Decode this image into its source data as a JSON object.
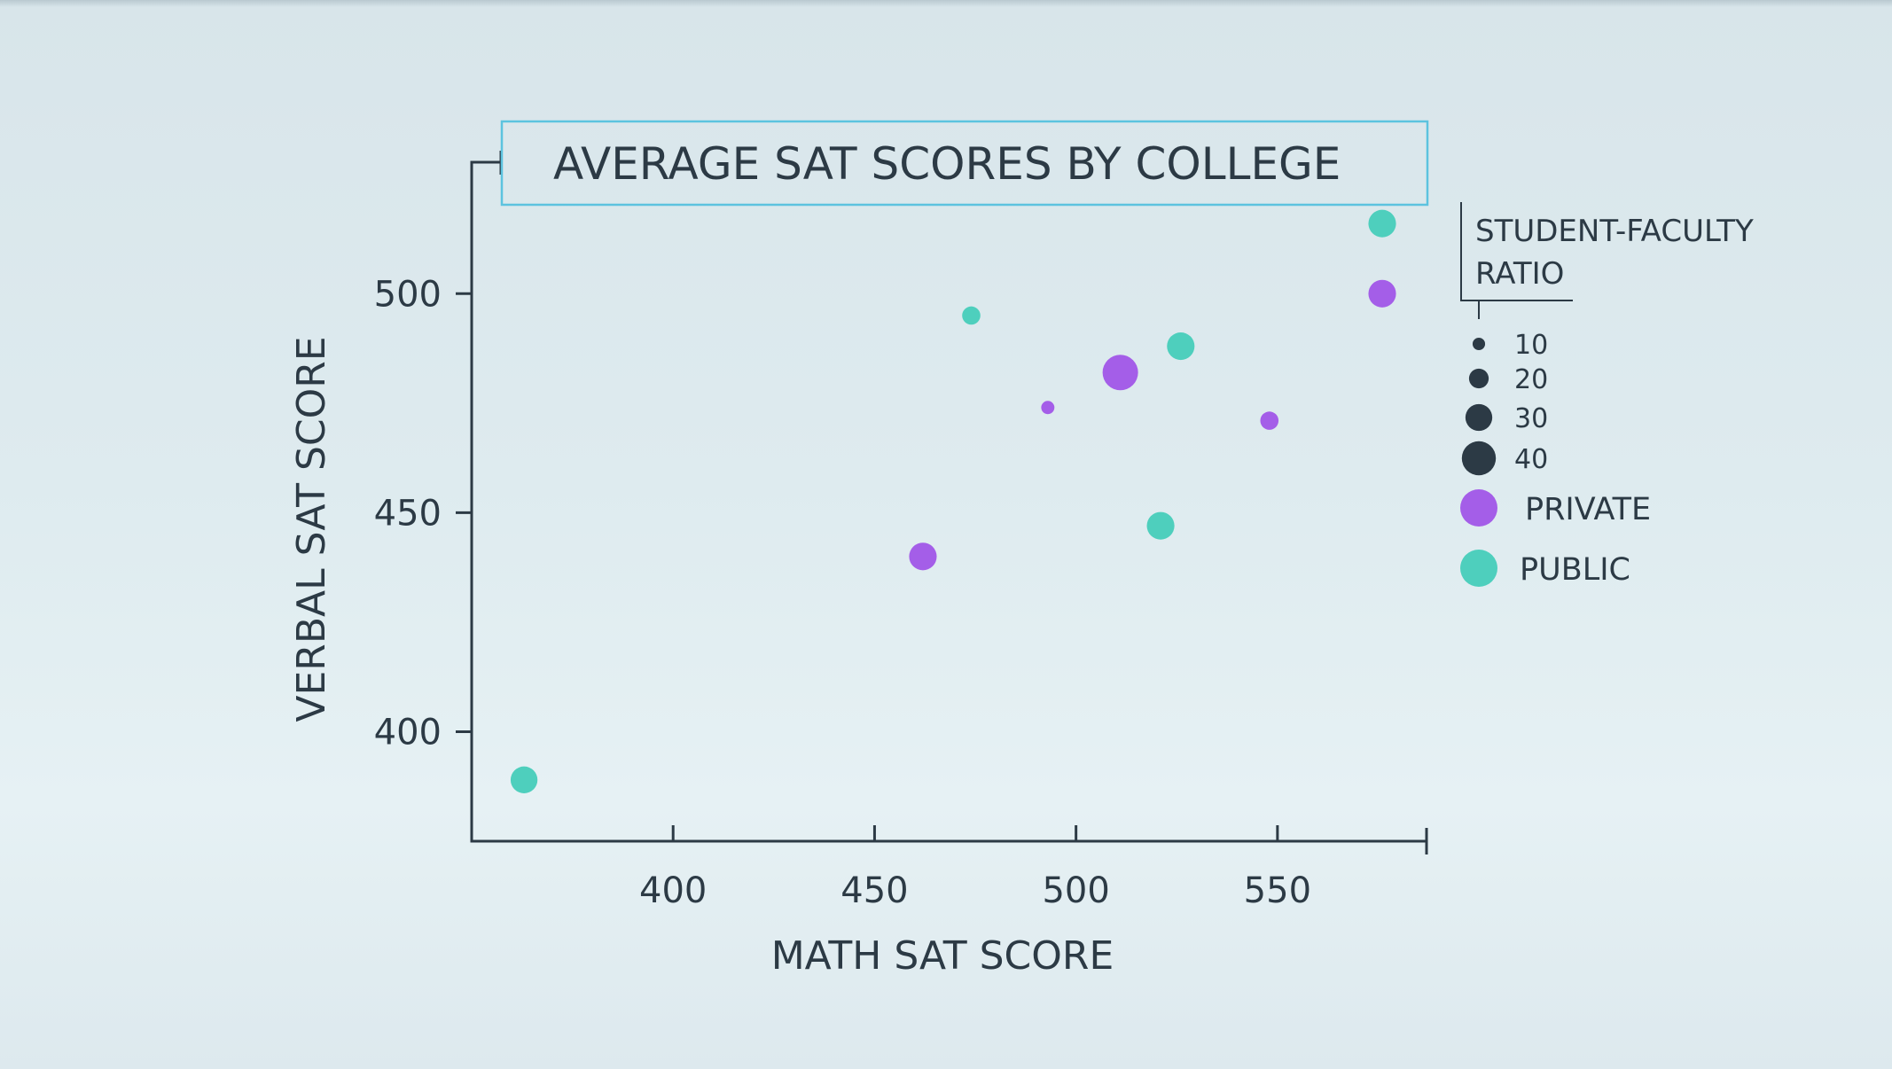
{
  "chart_data": {
    "type": "scatter",
    "title": "AVERAGE SAT SCORES BY COLLEGE",
    "xlabel": "MATH SAT SCORE",
    "ylabel": "VERBAL SAT SCORE",
    "xlim": [
      350,
      587
    ],
    "ylim": [
      375,
      530
    ],
    "xticks": [
      400,
      450,
      500,
      550
    ],
    "yticks": [
      400,
      450,
      500
    ],
    "grid": false,
    "size_legend": {
      "title_lines": [
        "STUDENT-FACULTY",
        "RATIO"
      ],
      "values": [
        10,
        20,
        30,
        40
      ],
      "color": "#2c3a45"
    },
    "series": [
      {
        "name": "PRIVATE",
        "color": "#a45ee8",
        "points": [
          {
            "x": 462,
            "y": 440,
            "ratio": 31
          },
          {
            "x": 493,
            "y": 474,
            "ratio": 11
          },
          {
            "x": 511,
            "y": 482,
            "ratio": 42
          },
          {
            "x": 548,
            "y": 471,
            "ratio": 18
          },
          {
            "x": 576,
            "y": 500,
            "ratio": 31
          }
        ]
      },
      {
        "name": "PUBLIC",
        "color": "#4ecfbd",
        "points": [
          {
            "x": 363,
            "y": 389,
            "ratio": 30
          },
          {
            "x": 474,
            "y": 495,
            "ratio": 18
          },
          {
            "x": 521,
            "y": 447,
            "ratio": 31
          },
          {
            "x": 526,
            "y": 488,
            "ratio": 31
          },
          {
            "x": 576,
            "y": 516,
            "ratio": 31
          }
        ]
      }
    ]
  }
}
